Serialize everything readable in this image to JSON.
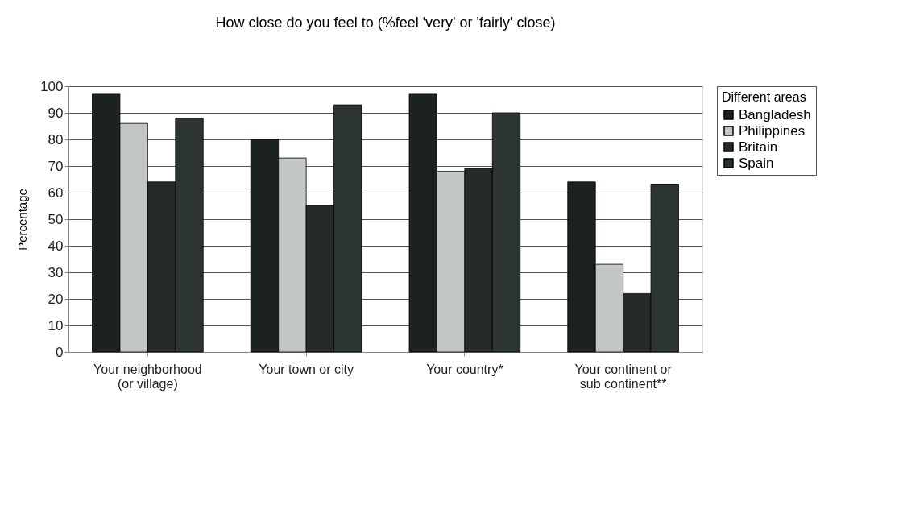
{
  "chart_data": {
    "type": "bar",
    "title": "How close do you feel to (%feel 'very' or 'fairly' close)",
    "ylabel": "Percentage",
    "legend_title": "Different areas",
    "categories": [
      "Your neighborhood (or village)",
      "Your town or city",
      "Your country*",
      "Your continent or sub continent**"
    ],
    "series": [
      {
        "name": "Bangladesh",
        "color": "#1c2121",
        "values": [
          97,
          80,
          97,
          64
        ]
      },
      {
        "name": "Philippines",
        "color": "#c2c6c6",
        "values": [
          86,
          73,
          68,
          33
        ]
      },
      {
        "name": "Britain",
        "color": "#232a29",
        "values": [
          64,
          55,
          69,
          22
        ]
      },
      {
        "name": "Spain",
        "color": "#2c3433",
        "values": [
          88,
          93,
          90,
          63
        ]
      }
    ],
    "ylim": [
      0,
      100
    ],
    "yticks": [
      0,
      10,
      20,
      30,
      40,
      50,
      60,
      70,
      80,
      90,
      100
    ],
    "grid": "y",
    "legend": "right"
  }
}
